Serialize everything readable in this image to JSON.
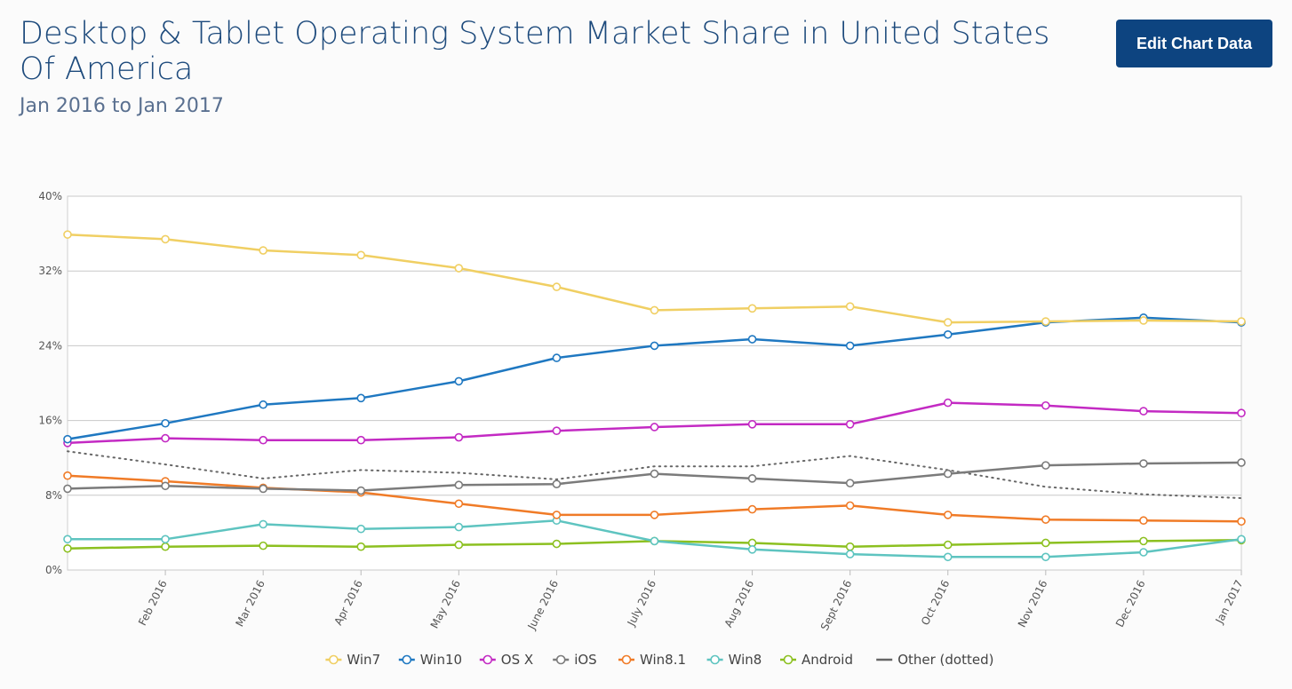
{
  "header": {
    "title": "Desktop & Tablet Operating System Market Share in United States Of America",
    "subtitle": "Jan 2016 to Jan 2017",
    "edit_button_label": "Edit Chart Data"
  },
  "chart_data": {
    "type": "line",
    "ylim": [
      0,
      40
    ],
    "y_ticks": [
      {
        "value": 0,
        "label": "0%"
      },
      {
        "value": 8,
        "label": "8%"
      },
      {
        "value": 16,
        "label": "16%"
      },
      {
        "value": 24,
        "label": "24%"
      },
      {
        "value": 32,
        "label": "32%"
      },
      {
        "value": 40,
        "label": "40%"
      }
    ],
    "x_tick_labels": [
      "Feb 2016",
      "Mar 2016",
      "Apr 2016",
      "May 2016",
      "June 2016",
      "July 2016",
      "Aug 2016",
      "Sept 2016",
      "Oct 2016",
      "Nov 2016",
      "Dec 2016",
      "Jan 2017"
    ],
    "categories": [
      "Jan 2016",
      "Feb 2016",
      "Mar 2016",
      "Apr 2016",
      "May 2016",
      "June 2016",
      "July 2016",
      "Aug 2016",
      "Sept 2016",
      "Oct 2016",
      "Nov 2016",
      "Dec 2016",
      "Jan 2017"
    ],
    "grid": "horizontal",
    "legend_position": "bottom",
    "series": [
      {
        "name": "Win7",
        "color": "#f0cf63",
        "style": "solid",
        "markers": true,
        "values": [
          35.9,
          35.4,
          34.2,
          33.7,
          32.3,
          30.3,
          27.8,
          28.0,
          28.2,
          26.5,
          26.6,
          26.7,
          26.6
        ]
      },
      {
        "name": "Win10",
        "color": "#1f78c1",
        "style": "solid",
        "markers": true,
        "values": [
          14.0,
          15.7,
          17.7,
          18.4,
          20.2,
          22.7,
          24.0,
          24.7,
          24.0,
          25.2,
          26.5,
          27.0,
          26.5
        ]
      },
      {
        "name": "OS X",
        "color": "#c32ac3",
        "style": "solid",
        "markers": true,
        "values": [
          13.6,
          14.1,
          13.9,
          13.9,
          14.2,
          14.9,
          15.3,
          15.6,
          15.6,
          17.9,
          17.6,
          17.0,
          16.8
        ]
      },
      {
        "name": "iOS",
        "color": "#7b7b7b",
        "style": "solid",
        "markers": true,
        "values": [
          8.7,
          9.0,
          8.7,
          8.5,
          9.1,
          9.2,
          10.3,
          9.8,
          9.3,
          10.3,
          11.2,
          11.4,
          11.5
        ]
      },
      {
        "name": "Win8.1",
        "color": "#f07b27",
        "style": "solid",
        "markers": true,
        "values": [
          10.1,
          9.5,
          8.8,
          8.3,
          7.1,
          5.9,
          5.9,
          6.5,
          6.9,
          5.9,
          5.4,
          5.3,
          5.2
        ]
      },
      {
        "name": "Win8",
        "color": "#5ec4c0",
        "style": "solid",
        "markers": true,
        "values": [
          3.3,
          3.3,
          4.9,
          4.4,
          4.6,
          5.3,
          3.1,
          2.2,
          1.7,
          1.4,
          1.4,
          1.9,
          3.3
        ]
      },
      {
        "name": "Android",
        "color": "#8cc020",
        "style": "solid",
        "markers": true,
        "values": [
          2.3,
          2.5,
          2.6,
          2.5,
          2.7,
          2.8,
          3.1,
          2.9,
          2.5,
          2.7,
          2.9,
          3.1,
          3.2
        ]
      },
      {
        "name": "Other (dotted)",
        "color": "#666666",
        "style": "dotted",
        "markers": false,
        "values": [
          12.7,
          11.3,
          9.8,
          10.7,
          10.4,
          9.7,
          11.1,
          11.1,
          12.2,
          10.7,
          8.9,
          8.1,
          7.7
        ]
      }
    ]
  }
}
